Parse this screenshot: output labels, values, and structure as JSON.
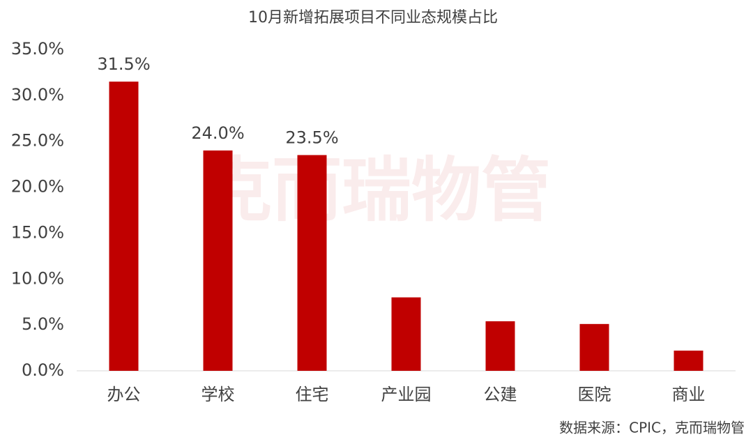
{
  "chart_data": {
    "type": "bar",
    "title": "10月新增拓展项目不同业态规模占比",
    "categories": [
      "办公",
      "学校",
      "住宅",
      "产业园",
      "公建",
      "医院",
      "商业"
    ],
    "values": [
      31.5,
      24.0,
      23.5,
      8.0,
      5.4,
      5.1,
      2.2
    ],
    "value_labels": [
      "31.5%",
      "24.0%",
      "23.5%",
      null,
      null,
      null,
      null
    ],
    "color": "#c00000",
    "ylim": [
      0,
      35
    ],
    "yticks": [
      {
        "value": 0,
        "label": "0.0%"
      },
      {
        "value": 5,
        "label": "5.0%"
      },
      {
        "value": 10,
        "label": "10.0%"
      },
      {
        "value": 15,
        "label": "15.0%"
      },
      {
        "value": 20,
        "label": "20.0%"
      },
      {
        "value": 25,
        "label": "25.0%"
      },
      {
        "value": 30,
        "label": "30.0%"
      },
      {
        "value": 35,
        "label": "35.0%"
      }
    ],
    "grid": false,
    "watermark": "克而瑞物管",
    "source": "数据来源：CPIC，克而瑞物管"
  }
}
